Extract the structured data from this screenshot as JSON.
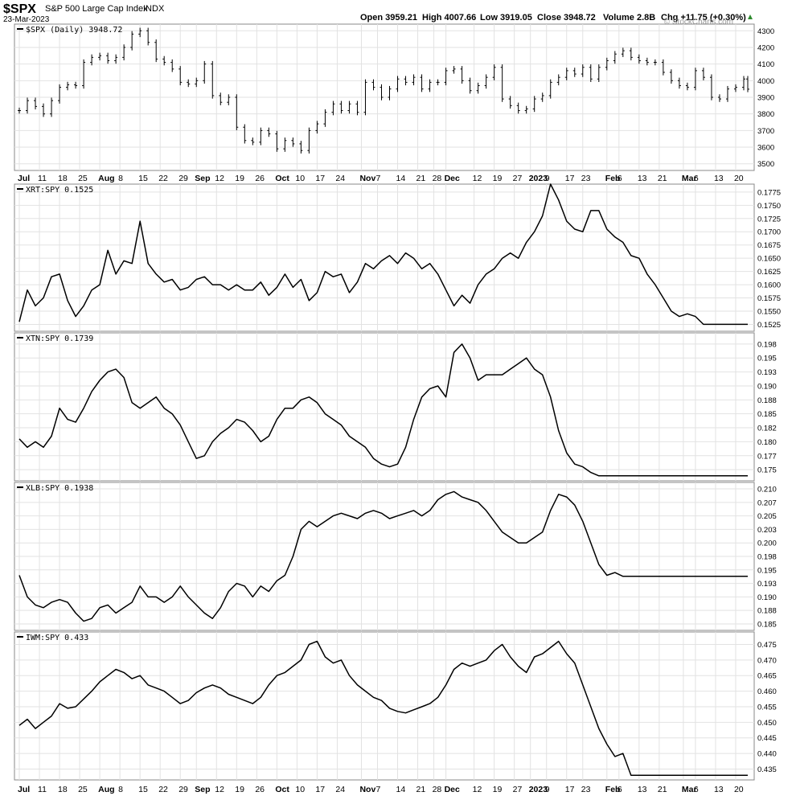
{
  "header": {
    "symbol": "$SPX",
    "name": "S&P 500 Large Cap Index",
    "exchange": "INDX",
    "date": "23-Mar-2023",
    "open": "Open 3959.21",
    "high": "High 4007.66",
    "low": "Low 3919.05",
    "close": "Close 3948.72",
    "volume": "Volume 2.8B",
    "change": "Chg +11.75 (+0.30%)",
    "watermark": "© StockCharts.com"
  },
  "x_axis": {
    "labels": [
      {
        "i": 0,
        "t": "Jul",
        "bold": true
      },
      {
        "i": 5,
        "t": "11"
      },
      {
        "i": 10,
        "t": "18"
      },
      {
        "i": 15,
        "t": "25"
      },
      {
        "i": 20,
        "t": "Aug",
        "bold": true
      },
      {
        "i": 25,
        "t": "8"
      },
      {
        "i": 30,
        "t": "15"
      },
      {
        "i": 35,
        "t": "22"
      },
      {
        "i": 40,
        "t": "29"
      },
      {
        "i": 44,
        "t": "Sep",
        "bold": true
      },
      {
        "i": 49,
        "t": "12"
      },
      {
        "i": 54,
        "t": "19"
      },
      {
        "i": 59,
        "t": "26"
      },
      {
        "i": 64,
        "t": "Oct",
        "bold": true
      },
      {
        "i": 69,
        "t": "10"
      },
      {
        "i": 74,
        "t": "17"
      },
      {
        "i": 79,
        "t": "24"
      },
      {
        "i": 85,
        "t": "Nov",
        "bold": true
      },
      {
        "i": 89,
        "t": "7"
      },
      {
        "i": 94,
        "t": "14"
      },
      {
        "i": 99,
        "t": "21"
      },
      {
        "i": 103,
        "t": "28"
      },
      {
        "i": 106,
        "t": "Dec",
        "bold": true
      },
      {
        "i": 113,
        "t": "12"
      },
      {
        "i": 118,
        "t": "19"
      },
      {
        "i": 123,
        "t": "27"
      },
      {
        "i": 127,
        "t": "2023",
        "bold": true
      },
      {
        "i": 131,
        "t": "9"
      },
      {
        "i": 136,
        "t": "17"
      },
      {
        "i": 140,
        "t": "23"
      },
      {
        "i": 146,
        "t": "Feb",
        "bold": true
      },
      {
        "i": 149,
        "t": "6"
      },
      {
        "i": 154,
        "t": "13"
      },
      {
        "i": 159,
        "t": "21"
      },
      {
        "i": 165,
        "t": "Mar",
        "bold": true
      },
      {
        "i": 168,
        "t": "6"
      },
      {
        "i": 173,
        "t": "13"
      },
      {
        "i": 178,
        "t": "20"
      }
    ],
    "total_bars": 182
  },
  "chart_data": [
    {
      "type": "ohlc",
      "legend": "$SPX (Daily) 3948.72",
      "yticks": [
        3500,
        3600,
        3700,
        3800,
        3900,
        4000,
        4100,
        4200,
        4300
      ],
      "ylim": [
        3460,
        4340
      ],
      "x": [
        0,
        2,
        4,
        6,
        8,
        10,
        12,
        14,
        16,
        18,
        20,
        22,
        24,
        26,
        28,
        30,
        32,
        34,
        36,
        38,
        40,
        42,
        44,
        46,
        48,
        50,
        52,
        54,
        56,
        58,
        60,
        62,
        64,
        66,
        68,
        70,
        72,
        74,
        76,
        78,
        80,
        82,
        84,
        86,
        88,
        90,
        92,
        94,
        96,
        98,
        100,
        102,
        104,
        106,
        108,
        110,
        112,
        114,
        116,
        118,
        120,
        122,
        124,
        126,
        128,
        130,
        132,
        134,
        136,
        138,
        140,
        142,
        144,
        146,
        148,
        150,
        152,
        154,
        156,
        158,
        160,
        162,
        164,
        166,
        168,
        170,
        172,
        174,
        176,
        178,
        180,
        181
      ],
      "close": [
        3820,
        3880,
        3845,
        3800,
        3880,
        3960,
        3975,
        3970,
        4110,
        4140,
        4150,
        4120,
        4140,
        4200,
        4280,
        4300,
        4230,
        4130,
        4110,
        4070,
        3990,
        3980,
        4000,
        4100,
        3910,
        3870,
        3900,
        3720,
        3640,
        3630,
        3700,
        3680,
        3590,
        3640,
        3620,
        3580,
        3700,
        3740,
        3810,
        3860,
        3820,
        3860,
        3810,
        3990,
        3960,
        3900,
        3950,
        4010,
        3990,
        4020,
        3950,
        3990,
        3990,
        4060,
        4070,
        4000,
        3940,
        3970,
        4020,
        4080,
        3890,
        3850,
        3820,
        3830,
        3890,
        3910,
        3990,
        4020,
        4060,
        4040,
        4080,
        4010,
        4080,
        4120,
        4160,
        4180,
        4140,
        4120,
        4110,
        4110,
        4050,
        4000,
        3970,
        3960,
        4060,
        4020,
        3900,
        3890,
        3950,
        3960,
        4010,
        3948.72
      ]
    },
    {
      "type": "line",
      "legend": "XRT:SPY 0.1525",
      "yticks": [
        0.1525,
        0.155,
        0.1575,
        0.16,
        0.1625,
        0.165,
        0.1675,
        0.17,
        0.1725,
        0.175,
        0.1775
      ],
      "ylim": [
        0.1512,
        0.179
      ],
      "x": [
        0,
        2,
        4,
        6,
        8,
        10,
        12,
        14,
        16,
        18,
        20,
        22,
        24,
        26,
        28,
        30,
        32,
        34,
        36,
        38,
        40,
        42,
        44,
        46,
        48,
        50,
        52,
        54,
        56,
        58,
        60,
        62,
        64,
        66,
        68,
        70,
        72,
        74,
        76,
        78,
        80,
        82,
        84,
        86,
        88,
        90,
        92,
        94,
        96,
        98,
        100,
        102,
        104,
        106,
        108,
        110,
        112,
        114,
        116,
        118,
        120,
        122,
        124,
        126,
        128,
        130,
        132,
        134,
        136,
        138,
        140,
        142,
        144,
        146,
        148,
        150,
        152,
        154,
        156,
        158,
        160,
        162,
        164,
        166,
        168,
        170,
        172,
        174,
        176,
        178,
        180,
        181
      ],
      "values": [
        0.153,
        0.159,
        0.156,
        0.1575,
        0.1615,
        0.162,
        0.157,
        0.154,
        0.156,
        0.159,
        0.16,
        0.1665,
        0.162,
        0.1645,
        0.164,
        0.172,
        0.164,
        0.162,
        0.1605,
        0.161,
        0.159,
        0.1595,
        0.161,
        0.1615,
        0.16,
        0.16,
        0.159,
        0.16,
        0.159,
        0.159,
        0.1605,
        0.158,
        0.1595,
        0.162,
        0.1595,
        0.161,
        0.157,
        0.1585,
        0.1625,
        0.1615,
        0.162,
        0.1585,
        0.1605,
        0.164,
        0.163,
        0.1645,
        0.1655,
        0.164,
        0.166,
        0.165,
        0.163,
        0.164,
        0.162,
        0.159,
        0.156,
        0.158,
        0.1565,
        0.16,
        0.162,
        0.163,
        0.165,
        0.166,
        0.165,
        0.168,
        0.17,
        0.173,
        0.179,
        0.176,
        0.172,
        0.1705,
        0.17,
        0.174,
        0.174,
        0.1705,
        0.169,
        0.168,
        0.1655,
        0.165,
        0.162,
        0.16,
        0.1575,
        0.155,
        0.154,
        0.1545,
        0.154,
        0.1525,
        0.1525,
        0.1525,
        0.1525,
        0.1525,
        0.1525,
        0.1525
      ]
    },
    {
      "type": "line",
      "legend": "XTN:SPY 0.1739",
      "yticks": [
        0.175,
        0.1775,
        0.18,
        0.1825,
        0.185,
        0.1875,
        0.19,
        0.1925,
        0.195,
        0.1975
      ],
      "ylim": [
        0.173,
        0.1995
      ],
      "x": [
        0,
        2,
        4,
        6,
        8,
        10,
        12,
        14,
        16,
        18,
        20,
        22,
        24,
        26,
        28,
        30,
        32,
        34,
        36,
        38,
        40,
        42,
        44,
        46,
        48,
        50,
        52,
        54,
        56,
        58,
        60,
        62,
        64,
        66,
        68,
        70,
        72,
        74,
        76,
        78,
        80,
        82,
        84,
        86,
        88,
        90,
        92,
        94,
        96,
        98,
        100,
        102,
        104,
        106,
        108,
        110,
        112,
        114,
        116,
        118,
        120,
        122,
        124,
        126,
        128,
        130,
        132,
        134,
        136,
        138,
        140,
        142,
        144,
        146,
        148,
        150,
        152,
        154,
        156,
        158,
        160,
        162,
        164,
        166,
        168,
        170,
        172,
        174,
        176,
        178,
        180,
        181
      ],
      "values": [
        0.1805,
        0.179,
        0.18,
        0.179,
        0.181,
        0.186,
        0.184,
        0.1835,
        0.186,
        0.189,
        0.191,
        0.1925,
        0.193,
        0.1915,
        0.187,
        0.186,
        0.187,
        0.188,
        0.186,
        0.185,
        0.183,
        0.18,
        0.177,
        0.1775,
        0.18,
        0.1815,
        0.1825,
        0.184,
        0.1835,
        0.182,
        0.18,
        0.181,
        0.184,
        0.186,
        0.186,
        0.1875,
        0.188,
        0.187,
        0.185,
        0.184,
        0.183,
        0.181,
        0.18,
        0.179,
        0.177,
        0.176,
        0.1755,
        0.176,
        0.179,
        0.184,
        0.188,
        0.1895,
        0.19,
        0.188,
        0.196,
        0.1975,
        0.195,
        0.191,
        0.192,
        0.192,
        0.192,
        0.193,
        0.194,
        0.195,
        0.193,
        0.192,
        0.188,
        0.182,
        0.178,
        0.176,
        0.1755,
        0.1745,
        0.1739,
        0.1739,
        0.1739,
        0.1739,
        0.1739,
        0.1739,
        0.1739,
        0.1739,
        0.1739,
        0.1739,
        0.1739,
        0.1739,
        0.1739,
        0.1739,
        0.1739,
        0.1739,
        0.1739,
        0.1739,
        0.1739,
        0.1739
      ]
    },
    {
      "type": "line",
      "legend": "XLB:SPY 0.1938",
      "yticks": [
        0.185,
        0.1875,
        0.19,
        0.1925,
        0.195,
        0.1975,
        0.2,
        0.2025,
        0.205,
        0.2075,
        0.21
      ],
      "ylim": [
        0.1838,
        0.2112
      ],
      "x": [
        0,
        2,
        4,
        6,
        8,
        10,
        12,
        14,
        16,
        18,
        20,
        22,
        24,
        26,
        28,
        30,
        32,
        34,
        36,
        38,
        40,
        42,
        44,
        46,
        48,
        50,
        52,
        54,
        56,
        58,
        60,
        62,
        64,
        66,
        68,
        70,
        72,
        74,
        76,
        78,
        80,
        82,
        84,
        86,
        88,
        90,
        92,
        94,
        96,
        98,
        100,
        102,
        104,
        106,
        108,
        110,
        112,
        114,
        116,
        118,
        120,
        122,
        124,
        126,
        128,
        130,
        132,
        134,
        136,
        138,
        140,
        142,
        144,
        146,
        148,
        150,
        152,
        154,
        156,
        158,
        160,
        162,
        164,
        166,
        168,
        170,
        172,
        174,
        176,
        178,
        180,
        181
      ],
      "values": [
        0.194,
        0.19,
        0.1885,
        0.188,
        0.189,
        0.1895,
        0.189,
        0.187,
        0.1855,
        0.186,
        0.188,
        0.1885,
        0.187,
        0.188,
        0.189,
        0.192,
        0.19,
        0.19,
        0.189,
        0.19,
        0.192,
        0.19,
        0.1885,
        0.187,
        0.186,
        0.188,
        0.191,
        0.1925,
        0.192,
        0.19,
        0.192,
        0.191,
        0.193,
        0.194,
        0.1975,
        0.2025,
        0.204,
        0.203,
        0.204,
        0.205,
        0.2055,
        0.205,
        0.2045,
        0.2055,
        0.206,
        0.2055,
        0.2045,
        0.205,
        0.2055,
        0.206,
        0.205,
        0.206,
        0.208,
        0.209,
        0.2095,
        0.2085,
        0.208,
        0.2075,
        0.206,
        0.204,
        0.202,
        0.201,
        0.2,
        0.2,
        0.201,
        0.202,
        0.206,
        0.209,
        0.2085,
        0.207,
        0.204,
        0.2,
        0.196,
        0.194,
        0.1945,
        0.1938,
        0.1938,
        0.1938,
        0.1938,
        0.1938,
        0.1938,
        0.1938,
        0.1938,
        0.1938,
        0.1938,
        0.1938,
        0.1938,
        0.1938,
        0.1938,
        0.1938,
        0.1938,
        0.1938
      ]
    },
    {
      "type": "line",
      "legend": "IWM:SPY 0.433",
      "yticks": [
        0.435,
        0.44,
        0.445,
        0.45,
        0.455,
        0.46,
        0.465,
        0.47,
        0.475
      ],
      "ylim": [
        0.4315,
        0.479
      ],
      "x": [
        0,
        2,
        4,
        6,
        8,
        10,
        12,
        14,
        16,
        18,
        20,
        22,
        24,
        26,
        28,
        30,
        32,
        34,
        36,
        38,
        40,
        42,
        44,
        46,
        48,
        50,
        52,
        54,
        56,
        58,
        60,
        62,
        64,
        66,
        68,
        70,
        72,
        74,
        76,
        78,
        80,
        82,
        84,
        86,
        88,
        90,
        92,
        94,
        96,
        98,
        100,
        102,
        104,
        106,
        108,
        110,
        112,
        114,
        116,
        118,
        120,
        122,
        124,
        126,
        128,
        130,
        132,
        134,
        136,
        138,
        140,
        142,
        144,
        146,
        148,
        150,
        152,
        154,
        156,
        158,
        160,
        162,
        164,
        166,
        168,
        170,
        172,
        174,
        176,
        178,
        180,
        181
      ],
      "values": [
        0.449,
        0.451,
        0.448,
        0.45,
        0.452,
        0.456,
        0.4545,
        0.455,
        0.4575,
        0.46,
        0.463,
        0.465,
        0.467,
        0.466,
        0.464,
        0.465,
        0.462,
        0.461,
        0.46,
        0.458,
        0.456,
        0.457,
        0.4595,
        0.461,
        0.462,
        0.461,
        0.459,
        0.458,
        0.457,
        0.456,
        0.458,
        0.462,
        0.465,
        0.466,
        0.468,
        0.47,
        0.475,
        0.476,
        0.471,
        0.469,
        0.47,
        0.465,
        0.462,
        0.46,
        0.458,
        0.457,
        0.4545,
        0.4535,
        0.453,
        0.454,
        0.455,
        0.456,
        0.458,
        0.462,
        0.467,
        0.469,
        0.468,
        0.469,
        0.47,
        0.473,
        0.475,
        0.471,
        0.468,
        0.466,
        0.471,
        0.472,
        0.474,
        0.476,
        0.472,
        0.469,
        0.462,
        0.455,
        0.448,
        0.443,
        0.439,
        0.44,
        0.433,
        0.433,
        0.433,
        0.433,
        0.433,
        0.433,
        0.433,
        0.433,
        0.433,
        0.433,
        0.433,
        0.433,
        0.433,
        0.433,
        0.433,
        0.433
      ]
    }
  ]
}
